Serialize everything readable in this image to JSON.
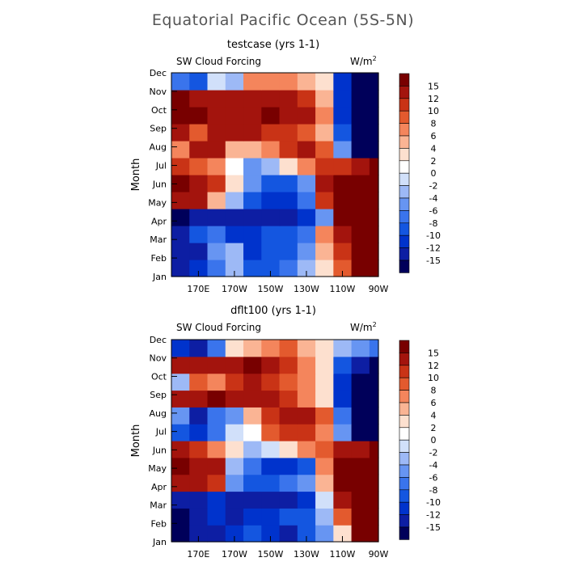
{
  "figure": {
    "title": "Equatorial Pacific Ocean (5S-5N)"
  },
  "chart_data": [
    {
      "type": "heatmap",
      "title": "testcase (yrs 1-1)",
      "variable_label": "SW Cloud Forcing",
      "units_label": "W/m",
      "units_superscript": "2",
      "xlabel": "",
      "ylabel": "Month",
      "x_ticks": [
        "170E",
        "170W",
        "150W",
        "130W",
        "110W",
        "90W"
      ],
      "x_tick_values": [
        170,
        190,
        210,
        230,
        250,
        270
      ],
      "xlim": [
        155,
        270
      ],
      "y_ticks": [
        "Jan",
        "Feb",
        "Mar",
        "Apr",
        "May",
        "Jun",
        "Jul",
        "Aug",
        "Sep",
        "Oct",
        "Nov",
        "Dec"
      ],
      "lon": [
        160,
        170,
        180,
        190,
        200,
        210,
        220,
        230,
        240,
        250,
        260,
        270
      ],
      "values": [
        [
          -13,
          -12,
          -8,
          -3,
          -10,
          -9,
          -8,
          -4,
          2,
          8,
          16,
          16
        ],
        [
          -15,
          -14,
          -6,
          -4,
          -12,
          -10,
          -9,
          -6,
          4,
          10,
          16,
          16
        ],
        [
          -14,
          -10,
          -8,
          -12,
          -11,
          -10,
          -10,
          -7,
          6,
          14,
          16,
          16
        ],
        [
          -16,
          -15,
          -14,
          -13,
          -14,
          -15,
          -14,
          -12,
          -6,
          16,
          16,
          16
        ],
        [
          14,
          13,
          4,
          -4,
          -10,
          -11,
          -11,
          -8,
          10,
          16,
          16,
          16
        ],
        [
          16,
          14,
          10,
          3,
          -6,
          -10,
          -9,
          -6,
          12,
          16,
          16,
          16
        ],
        [
          10,
          8,
          6,
          1,
          -6,
          -4,
          3,
          6,
          10,
          10,
          12,
          16
        ],
        [
          6,
          12,
          14,
          5,
          4,
          6,
          10,
          12,
          8,
          -6,
          -16,
          -16
        ],
        [
          14,
          8,
          12,
          14,
          13,
          10,
          10,
          8,
          4,
          -10,
          -16,
          -16
        ],
        [
          16,
          15,
          13,
          14,
          14,
          15,
          14,
          12,
          6,
          -12,
          -16,
          -16
        ],
        [
          16,
          13,
          12,
          12,
          13,
          13,
          13,
          10,
          4,
          -12,
          -16,
          -16
        ],
        [
          -8,
          -10,
          -2,
          -3,
          6,
          7,
          6,
          4,
          2,
          -12,
          -16,
          -16
        ]
      ],
      "colorbar_levels": [
        "15",
        "12",
        "10",
        "8",
        "6",
        "4",
        "2",
        "0",
        "-2",
        "-4",
        "-6",
        "-8",
        "-10",
        "-12",
        "-15"
      ]
    },
    {
      "type": "heatmap",
      "title": "dflt100 (yrs 1-1)",
      "variable_label": "SW Cloud Forcing",
      "units_label": "W/m",
      "units_superscript": "2",
      "xlabel": "",
      "ylabel": "Month",
      "x_ticks": [
        "170E",
        "170W",
        "150W",
        "130W",
        "110W",
        "90W"
      ],
      "x_tick_values": [
        170,
        190,
        210,
        230,
        250,
        270
      ],
      "xlim": [
        155,
        270
      ],
      "y_ticks": [
        "Jan",
        "Feb",
        "Mar",
        "Apr",
        "May",
        "Jun",
        "Jul",
        "Aug",
        "Sep",
        "Oct",
        "Nov",
        "Dec"
      ],
      "lon": [
        160,
        170,
        180,
        190,
        200,
        210,
        220,
        230,
        240,
        250,
        260,
        270
      ],
      "values": [
        [
          -16,
          -15,
          -14,
          -12,
          -10,
          -11,
          -13,
          -10,
          -6,
          2,
          16,
          16
        ],
        [
          -16,
          -14,
          -12,
          -14,
          -12,
          -11,
          -10,
          -9,
          -4,
          8,
          16,
          16
        ],
        [
          -14,
          -13,
          -12,
          -15,
          -15,
          -14,
          -14,
          -12,
          -2,
          12,
          16,
          16
        ],
        [
          12,
          14,
          10,
          -5,
          -10,
          -9,
          -8,
          -6,
          4,
          16,
          16,
          16
        ],
        [
          16,
          14,
          12,
          -3,
          -8,
          -12,
          -12,
          -9,
          6,
          16,
          16,
          16
        ],
        [
          12,
          10,
          6,
          2,
          -4,
          -2,
          2,
          6,
          8,
          12,
          14,
          16
        ],
        [
          -10,
          -12,
          -8,
          -2,
          0,
          8,
          10,
          10,
          6,
          -6,
          -16,
          -16
        ],
        [
          -6,
          -14,
          -8,
          -5,
          4,
          10,
          12,
          12,
          8,
          -8,
          -16,
          -16
        ],
        [
          14,
          12,
          16,
          14,
          14,
          12,
          10,
          6,
          2,
          -12,
          -16,
          -16
        ],
        [
          -4,
          8,
          6,
          10,
          12,
          10,
          8,
          6,
          2,
          -12,
          -16,
          -16
        ],
        [
          14,
          12,
          13,
          14,
          16,
          12,
          10,
          6,
          2,
          -10,
          -14,
          -16
        ],
        [
          -12,
          -14,
          -8,
          2,
          4,
          6,
          8,
          4,
          2,
          -4,
          -6,
          -8
        ]
      ],
      "colorbar_levels": [
        "15",
        "12",
        "10",
        "8",
        "6",
        "4",
        "2",
        "0",
        "-2",
        "-4",
        "-6",
        "-8",
        "-10",
        "-12",
        "-15"
      ]
    }
  ],
  "palette": {
    "levels": [
      -15,
      -12,
      -10,
      -8,
      -6,
      -4,
      -2,
      0,
      2,
      4,
      6,
      8,
      10,
      12,
      15
    ],
    "colors": [
      "#00005a",
      "#0d1ea3",
      "#0033cc",
      "#1456e0",
      "#3a74ec",
      "#6795f2",
      "#9db9f6",
      "#d1e0fa",
      "#ffffff",
      "#fde0cf",
      "#fab494",
      "#f4855c",
      "#e35a2e",
      "#c93316",
      "#a3140d",
      "#780000"
    ]
  }
}
